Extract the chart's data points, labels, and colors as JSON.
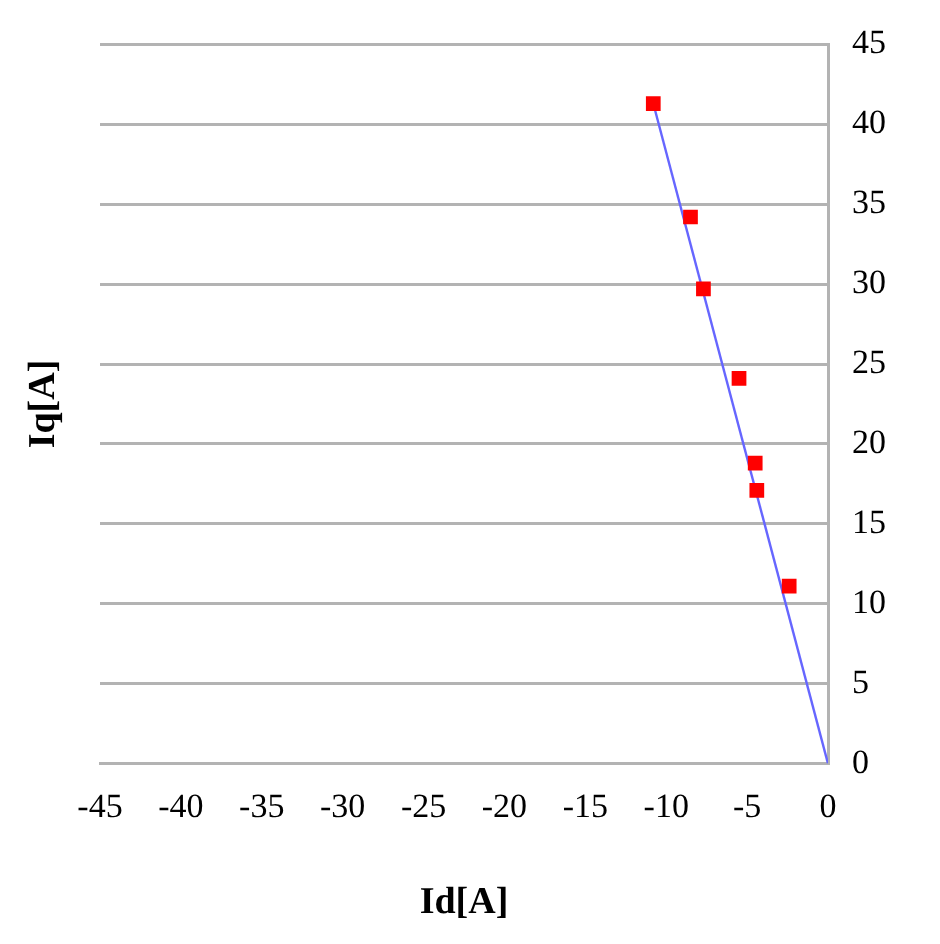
{
  "chart_data": {
    "type": "scatter",
    "xlabel": "Id[A]",
    "ylabel": "Iq[A]",
    "xlim": [
      -45,
      0
    ],
    "xticks": [
      -45,
      -40,
      -35,
      -30,
      -25,
      -20,
      -15,
      -10,
      -5,
      0
    ],
    "ylim": [
      0,
      45
    ],
    "yticks": [
      0,
      5,
      10,
      15,
      20,
      25,
      30,
      35,
      40,
      45
    ],
    "grid": "y",
    "legend": false,
    "series": [
      {
        "marker": "square",
        "color": "#ff0000",
        "x": [
          -10.8,
          -8.5,
          -7.7,
          -5.5,
          -4.5,
          -4.4,
          -2.4
        ],
        "values": [
          41.3,
          34.2,
          29.7,
          24.1,
          18.8,
          17.1,
          11.1
        ]
      },
      {
        "type": "line",
        "marker": "none",
        "color": "#6666ff",
        "x": [
          0,
          -10.8
        ],
        "values": [
          0,
          41.3
        ]
      }
    ]
  }
}
